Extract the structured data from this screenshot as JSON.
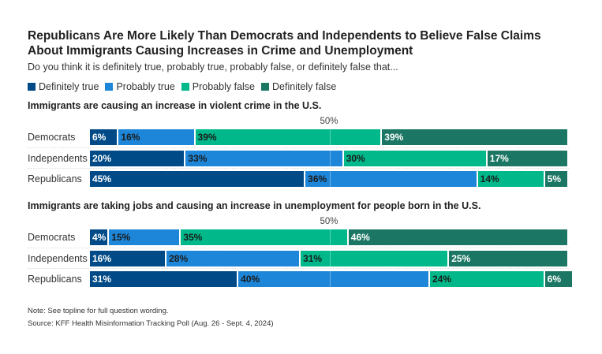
{
  "title": "Republicans Are More Likely Than Democrats and Independents to Believe False Claims About Immigrants Causing Increases in Crime and Unemployment",
  "subtitle": "Do you think it is definitely true, probably true, probably false, or definitely false that...",
  "note": "Note: See topline for full question wording.",
  "source": "Source: KFF Health Misinformation Tracking Poll (Aug. 26 - Sept. 4, 2024)",
  "chart_data": {
    "type": "bar",
    "orientation": "horizontal-stacked",
    "legend": [
      {
        "name": "Definitely true",
        "color": "#004a87",
        "text": "#ffffff"
      },
      {
        "name": "Probably true",
        "color": "#1e86d8",
        "text": "#1a1a1a"
      },
      {
        "name": "Probably false",
        "color": "#00b88a",
        "text": "#1a1a1a"
      },
      {
        "name": "Definitely false",
        "color": "#1b7764",
        "text": "#ffffff"
      }
    ],
    "legend_placement": "top-left",
    "reference_label": "50%",
    "reference_value": 50,
    "panels": [
      {
        "title": "Immigrants are causing an increase in violent crime in the U.S.",
        "categories": [
          "Democrats",
          "Independents",
          "Republicans"
        ],
        "values": [
          [
            6,
            16,
            39,
            39
          ],
          [
            20,
            33,
            30,
            17
          ],
          [
            45,
            36,
            14,
            5
          ]
        ]
      },
      {
        "title": "Immigrants are taking jobs and causing an increase in unemployment for people born in the U.S.",
        "categories": [
          "Democrats",
          "Independents",
          "Republicans"
        ],
        "values": [
          [
            4,
            15,
            35,
            46
          ],
          [
            16,
            28,
            31,
            25
          ],
          [
            31,
            40,
            24,
            6
          ]
        ]
      }
    ]
  }
}
